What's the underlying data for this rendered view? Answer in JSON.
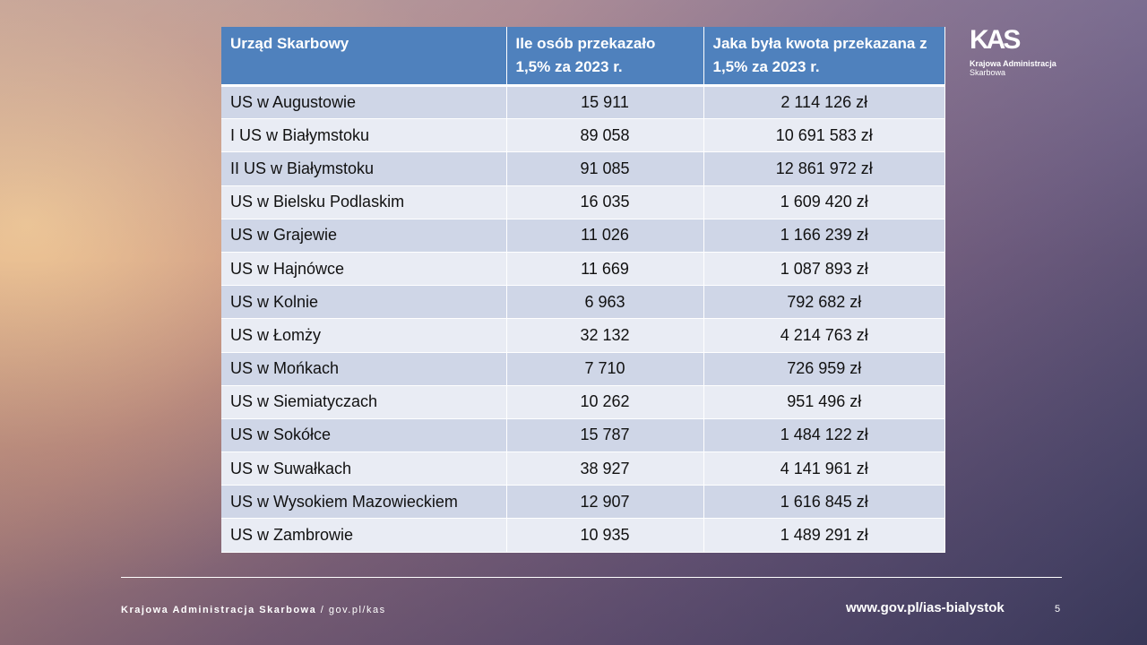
{
  "table": {
    "headers": [
      "Urząd Skarbowy",
      "Ile osób przekazało 1,5% za 2023 r.",
      "Jaka była kwota przekazana z 1,5% za 2023 r."
    ],
    "rows": [
      [
        "US w Augustowie",
        "15 911",
        "2 114 126 zł"
      ],
      [
        "I US w Białymstoku",
        "89 058",
        "10 691 583 zł"
      ],
      [
        "II US w Białymstoku",
        "91 085",
        "12 861 972 zł"
      ],
      [
        "US w Bielsku Podlaskim",
        "16 035",
        "1 609 420 zł"
      ],
      [
        "US w Grajewie",
        "11 026",
        "1 166 239 zł"
      ],
      [
        "US w Hajnówce",
        "11 669",
        "1 087 893 zł"
      ],
      [
        "US w Kolnie",
        "6 963",
        "792 682 zł"
      ],
      [
        "US w Łomży",
        "32 132",
        "4 214 763 zł"
      ],
      [
        "US w Mońkach",
        "7 710",
        "726 959 zł"
      ],
      [
        "US w Siemiatyczach",
        "10 262",
        "951 496 zł"
      ],
      [
        "US w Sokółce",
        "15 787",
        "1 484 122 zł"
      ],
      [
        "US w Suwałkach",
        "38 927",
        "4 141 961 zł"
      ],
      [
        "US w Wysokiem Mazowieckiem",
        "12 907",
        "1 616 845 zł"
      ],
      [
        "US w Zambrowie",
        "10 935",
        "1 489 291 zł"
      ]
    ]
  },
  "logo": {
    "mark": "KAS",
    "line1": "Krajowa Administracja",
    "line2": "Skarbowa"
  },
  "footer": {
    "org": "Krajowa Administracja Skarbowa",
    "sep": " / ",
    "site": "gov.pl/kas",
    "url": "www.gov.pl/ias-bialystok",
    "page": "5"
  },
  "colors": {
    "header": "#4f81bd",
    "row_odd": "#cfd6e7",
    "row_even": "#e9ecf4"
  }
}
